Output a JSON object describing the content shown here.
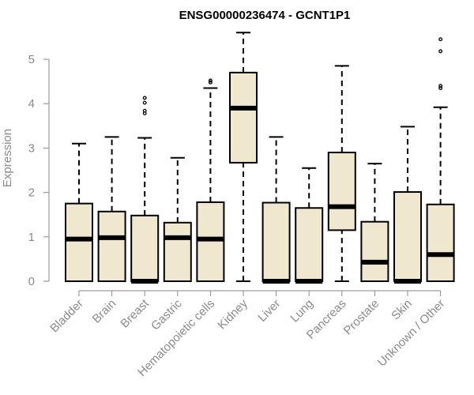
{
  "chart_data": {
    "type": "box",
    "title": "ENSG00000236474 - GCNT1P1",
    "ylabel": "Expression",
    "xlabel": "",
    "ylim": [
      0,
      5.6
    ],
    "yticks": [
      0,
      1,
      2,
      3,
      4,
      5
    ],
    "grid": false,
    "box_fill": "#efe8cf",
    "categories": [
      "Bladder",
      "Brain",
      "Breast",
      "Gastric",
      "Hematopoietic cells",
      "Kidney",
      "Liver",
      "Lung",
      "Pancreas",
      "Prostate",
      "Skin",
      "Unknown / Other"
    ],
    "boxes": [
      {
        "min": 0,
        "q1": 0,
        "median": 0.95,
        "q3": 1.75,
        "max": 3.1,
        "outliers": []
      },
      {
        "min": 0,
        "q1": 0,
        "median": 0.98,
        "q3": 1.57,
        "max": 3.25,
        "outliers": []
      },
      {
        "min": 0,
        "q1": 0,
        "median": 0,
        "q3": 1.48,
        "max": 3.23,
        "outliers": [
          3.78,
          3.84,
          4.02,
          4.13
        ]
      },
      {
        "min": 0,
        "q1": 0,
        "median": 0.98,
        "q3": 1.32,
        "max": 2.78,
        "outliers": []
      },
      {
        "min": 0,
        "q1": 0,
        "median": 0.95,
        "q3": 1.78,
        "max": 4.35,
        "outliers": [
          4.48,
          4.52
        ]
      },
      {
        "min": 0,
        "q1": 2.67,
        "median": 3.9,
        "q3": 4.7,
        "max": 5.6,
        "outliers": []
      },
      {
        "min": 0,
        "q1": 0,
        "median": 0,
        "q3": 1.77,
        "max": 3.25,
        "outliers": []
      },
      {
        "min": 0,
        "q1": 0,
        "median": 0,
        "q3": 1.65,
        "max": 2.55,
        "outliers": []
      },
      {
        "min": 0,
        "q1": 1.15,
        "median": 1.68,
        "q3": 2.9,
        "max": 4.85,
        "outliers": []
      },
      {
        "min": 0,
        "q1": 0,
        "median": 0.43,
        "q3": 1.34,
        "max": 2.65,
        "outliers": []
      },
      {
        "min": 0,
        "q1": 0,
        "median": 0,
        "q3": 2.01,
        "max": 3.48,
        "outliers": []
      },
      {
        "min": 0,
        "q1": 0,
        "median": 0.6,
        "q3": 1.73,
        "max": 3.92,
        "outliers": [
          4.35,
          4.4,
          5.18,
          5.45
        ]
      }
    ]
  }
}
